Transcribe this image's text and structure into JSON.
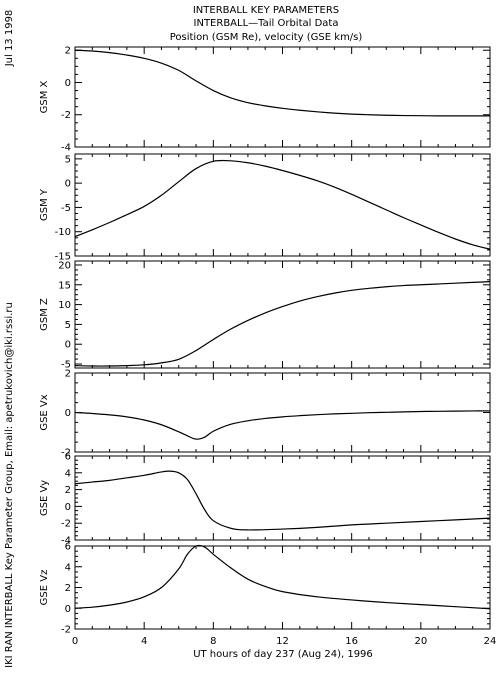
{
  "header": {
    "title_lines": [
      "INTERBALL KEY PARAMETERS",
      "INTERBALL—Tail Orbital Data",
      "Position (GSM Re), velocity (GSE km/s)"
    ],
    "date_label": "Jul 13 1998",
    "credit_label": "IKI RAN INTERBALL Key Parameter Group, Email: apetrukovich@iki.rssi.ru"
  },
  "colors": {
    "line": "#000000",
    "background": "#ffffff"
  },
  "chart_data": [
    {
      "type": "line",
      "ylabel": "GSM X",
      "ylim": [
        -4,
        2.2
      ],
      "yticks": [
        -4,
        -2,
        0,
        2
      ],
      "x": [
        0,
        1,
        2,
        3,
        4,
        5,
        6,
        7,
        8,
        9,
        10,
        11,
        12,
        13,
        14,
        15,
        16,
        17,
        18,
        19,
        20,
        21,
        22,
        23,
        24
      ],
      "y": [
        2.0,
        1.95,
        1.85,
        1.7,
        1.5,
        1.2,
        0.75,
        0.1,
        -0.5,
        -0.95,
        -1.25,
        -1.45,
        -1.6,
        -1.72,
        -1.82,
        -1.9,
        -1.96,
        -2.0,
        -2.03,
        -2.05,
        -2.06,
        -2.07,
        -2.07,
        -2.07,
        -2.07
      ]
    },
    {
      "type": "line",
      "ylabel": "GSM Y",
      "ylim": [
        -15,
        6
      ],
      "yticks": [
        -15,
        -10,
        -5,
        0,
        5
      ],
      "x": [
        0,
        1,
        2,
        3,
        4,
        5,
        6,
        7,
        8,
        9,
        10,
        11,
        12,
        13,
        14,
        15,
        16,
        17,
        18,
        19,
        20,
        21,
        22,
        23,
        24
      ],
      "y": [
        -11,
        -9.6,
        -8.1,
        -6.5,
        -4.8,
        -2.5,
        0.3,
        3.0,
        4.5,
        4.6,
        4.2,
        3.5,
        2.6,
        1.6,
        0.5,
        -0.8,
        -2.3,
        -3.9,
        -5.5,
        -7.1,
        -8.6,
        -10.1,
        -11.5,
        -12.7,
        -13.6
      ]
    },
    {
      "type": "line",
      "ylabel": "GSM Z",
      "ylim": [
        -6,
        21
      ],
      "yticks": [
        -5,
        0,
        5,
        10,
        15,
        20
      ],
      "x": [
        0,
        1,
        2,
        3,
        4,
        5,
        6,
        7,
        8,
        9,
        10,
        11,
        12,
        13,
        14,
        15,
        16,
        17,
        18,
        19,
        20,
        21,
        22,
        23,
        24
      ],
      "y": [
        -5.4,
        -5.5,
        -5.5,
        -5.4,
        -5.2,
        -4.7,
        -3.8,
        -1.6,
        1.2,
        3.8,
        6.0,
        7.9,
        9.5,
        10.9,
        12.0,
        12.9,
        13.6,
        14.1,
        14.5,
        14.8,
        15.0,
        15.2,
        15.4,
        15.6,
        15.8
      ]
    },
    {
      "type": "line",
      "ylabel": "GSE Vx",
      "ylim": [
        -2,
        2
      ],
      "yticks": [
        -2,
        0,
        2
      ],
      "x": [
        0,
        1,
        2,
        3,
        4,
        5,
        6,
        6.5,
        7,
        7.5,
        8,
        9,
        10,
        11,
        12,
        13,
        14,
        15,
        16,
        17,
        18,
        19,
        20,
        21,
        22,
        23,
        24
      ],
      "y": [
        0.0,
        -0.05,
        -0.12,
        -0.22,
        -0.38,
        -0.62,
        -0.98,
        -1.18,
        -1.35,
        -1.25,
        -0.95,
        -0.6,
        -0.42,
        -0.3,
        -0.22,
        -0.16,
        -0.11,
        -0.07,
        -0.04,
        -0.01,
        0.01,
        0.03,
        0.05,
        0.06,
        0.07,
        0.08,
        0.08
      ]
    },
    {
      "type": "line",
      "ylabel": "GSE Vy",
      "ylim": [
        -4,
        6
      ],
      "yticks": [
        -4,
        -2,
        0,
        2,
        4,
        6
      ],
      "x": [
        0,
        1,
        2,
        3,
        4,
        5,
        5.5,
        6,
        6.5,
        7,
        7.5,
        8,
        9,
        10,
        12,
        14,
        16,
        18,
        20,
        22,
        24
      ],
      "y": [
        2.7,
        2.9,
        3.1,
        3.4,
        3.7,
        4.1,
        4.2,
        4.0,
        3.2,
        1.5,
        -0.4,
        -1.7,
        -2.6,
        -2.8,
        -2.7,
        -2.5,
        -2.2,
        -2.0,
        -1.8,
        -1.6,
        -1.4
      ]
    },
    {
      "type": "line",
      "ylabel": "GSE Vz",
      "ylim": [
        -2,
        6
      ],
      "yticks": [
        -2,
        0,
        2,
        4,
        6
      ],
      "x": [
        0,
        1,
        2,
        3,
        4,
        5,
        6,
        6.5,
        7,
        7.5,
        8,
        9,
        10,
        11,
        12,
        14,
        16,
        18,
        20,
        22,
        24
      ],
      "y": [
        0.0,
        0.1,
        0.3,
        0.6,
        1.1,
        2.0,
        3.8,
        5.2,
        6.0,
        5.9,
        5.2,
        3.9,
        2.8,
        2.1,
        1.6,
        1.1,
        0.8,
        0.55,
        0.35,
        0.15,
        -0.05
      ]
    }
  ],
  "xaxis": {
    "xlim": [
      0,
      24
    ],
    "ticks": [
      0,
      4,
      8,
      12,
      16,
      20,
      24
    ],
    "label": "UT hours of day 237 (Aug 24), 1996"
  }
}
